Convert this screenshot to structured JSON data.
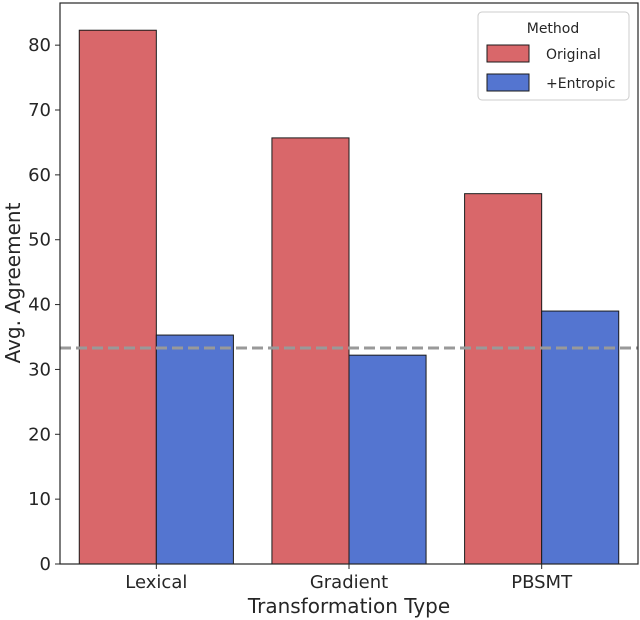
{
  "chart_data": {
    "type": "bar",
    "title": "",
    "xlabel": "Transformation Type",
    "ylabel": "Avg. Agreement",
    "categories": [
      "Lexical",
      "Gradient",
      "PBSMT"
    ],
    "series": [
      {
        "name": "Original",
        "color": "#d9676a",
        "values": [
          82.3,
          65.7,
          57.1
        ]
      },
      {
        "name": "+Entropic",
        "color": "#5475d0",
        "values": [
          35.3,
          32.2,
          39.0
        ]
      }
    ],
    "yticks": [
      0,
      10,
      20,
      30,
      40,
      50,
      60,
      70,
      80
    ],
    "ylim": [
      0,
      86.5
    ],
    "reference_line": {
      "value": 33.3,
      "style": "dashed",
      "color": "#999999"
    },
    "legend": {
      "title": "Method",
      "position": "top-right"
    },
    "grid": false
  }
}
